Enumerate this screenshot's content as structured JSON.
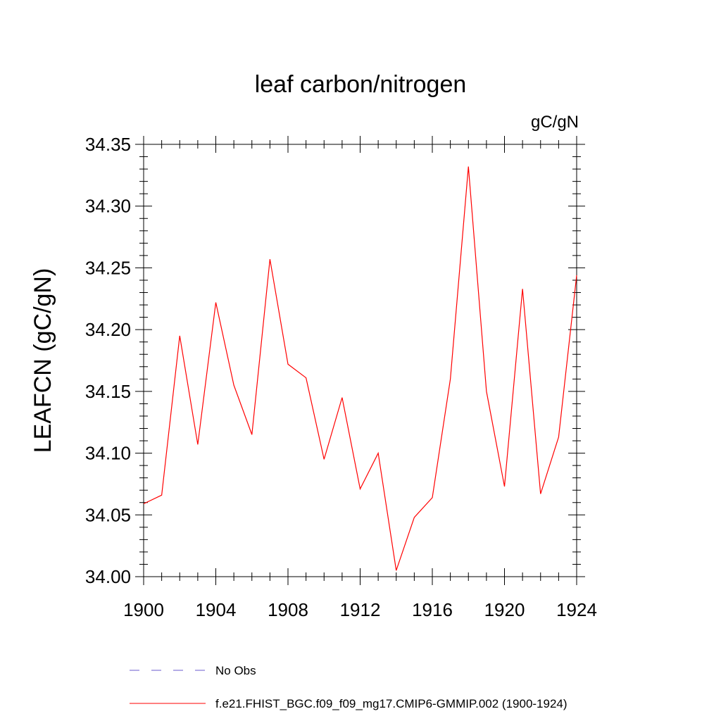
{
  "chart_data": {
    "type": "line",
    "title": "leaf carbon/nitrogen",
    "units_label": "gC/gN",
    "ylabel": "LEAFCN  (gC/gN)",
    "xlabel": "",
    "xlim": [
      1900,
      1924
    ],
    "ylim": [
      34.0,
      34.35
    ],
    "x_ticks": [
      1900,
      1904,
      1908,
      1912,
      1916,
      1920,
      1924
    ],
    "x_tick_labels": [
      "1900",
      "1904",
      "1908",
      "1912",
      "1916",
      "1920",
      "1924"
    ],
    "y_ticks": [
      34.0,
      34.05,
      34.1,
      34.15,
      34.2,
      34.25,
      34.3,
      34.35
    ],
    "y_tick_labels": [
      "34.00",
      "34.05",
      "34.10",
      "34.15",
      "34.20",
      "34.25",
      "34.30",
      "34.35"
    ],
    "x": [
      1900,
      1901,
      1902,
      1903,
      1904,
      1905,
      1906,
      1907,
      1908,
      1909,
      1910,
      1911,
      1912,
      1913,
      1914,
      1915,
      1916,
      1917,
      1918,
      1919,
      1920,
      1921,
      1922,
      1923,
      1924
    ],
    "series": [
      {
        "name": "f.e21.FHIST_BGC.f09_f09_mg17.CMIP6-GMMIP.002 (1900-1924)",
        "color": "#ff0000",
        "style": "solid",
        "values": [
          34.059,
          34.066,
          34.195,
          34.107,
          34.222,
          34.155,
          34.115,
          34.257,
          34.172,
          34.161,
          34.095,
          34.145,
          34.071,
          34.1,
          34.005,
          34.048,
          34.064,
          34.16,
          34.332,
          34.15,
          34.073,
          34.233,
          34.067,
          34.113,
          34.244
        ]
      }
    ],
    "legend": [
      {
        "label": "No Obs",
        "color": "#6a5acd",
        "style": "dashed"
      },
      {
        "label": "f.e21.FHIST_BGC.f09_f09_mg17.CMIP6-GMMIP.002 (1900-1924)",
        "color": "#ff0000",
        "style": "solid"
      }
    ],
    "legend_position": "bottom",
    "grid": false
  }
}
